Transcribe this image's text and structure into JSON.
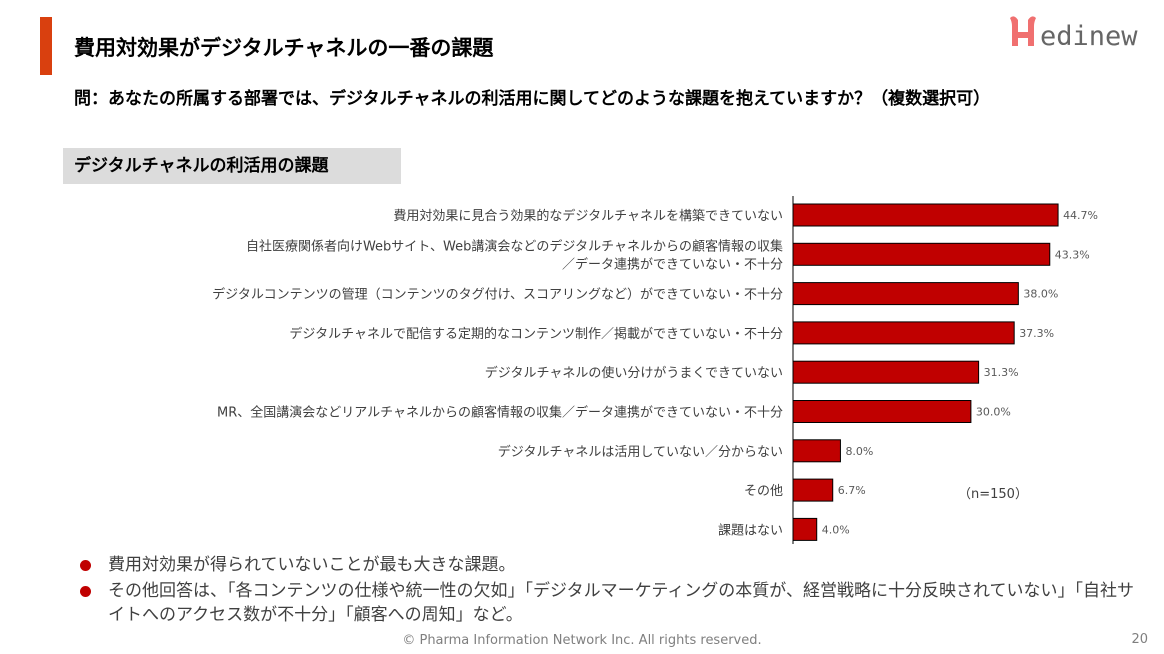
{
  "header": {
    "title": "費用対効果がデジタルチャネルの一番の課題",
    "question": "問：あなたの所属する部署では、デジタルチャネルの利活用に関してどのような課題を抱えていますか？（複数選択可）",
    "logo_text": "Medinew"
  },
  "section_label": "デジタルチャネルの利活用の課題",
  "colors": {
    "bar": "#c00000",
    "accent": "#d9400f",
    "logo": "#f07070"
  },
  "chart_data": {
    "type": "bar",
    "orientation": "horizontal",
    "categories": [
      [
        "費用対効果に見合う効果的なデジタルチャネルを構築できていない"
      ],
      [
        "自社医療関係者向けWebサイト、Web講演会などのデジタルチャネルからの顧客情報の収集",
        "／データ連携ができていない・不十分"
      ],
      [
        "デジタルコンテンツの管理（コンテンツのタグ付け、スコアリングなど）ができていない・不十分"
      ],
      [
        "デジタルチャネルで配信する定期的なコンテンツ制作／掲載ができていない・不十分"
      ],
      [
        "デジタルチャネルの使い分けがうまくできていない"
      ],
      [
        "MR、全国講演会などリアルチャネルからの顧客情報の収集／データ連携ができていない・不十分"
      ],
      [
        "デジタルチャネルは活用していない／分からない"
      ],
      [
        "その他"
      ],
      [
        "課題はない"
      ]
    ],
    "values": [
      44.7,
      43.3,
      38.0,
      37.3,
      31.3,
      30.0,
      8.0,
      6.7,
      4.0
    ],
    "labels": [
      "44.7%",
      "43.3%",
      "38.0%",
      "37.3%",
      "31.3%",
      "30.0%",
      "8.0%",
      "6.7%",
      "4.0%"
    ],
    "annotation": "（n=150）",
    "grid": false
  },
  "bullets": [
    "費用対効果が得られていないことが最も大きな課題。",
    "その他回答は、「各コンテンツの仕様や統一性の欠如」「デジタルマーケティングの本質が、経営戦略に十分反映されていない」「自社サイトへのアクセス数が不十分」「顧客への周知」など。"
  ],
  "footer": "© Pharma Information Network Inc.  All rights reserved.",
  "page_number": "20"
}
